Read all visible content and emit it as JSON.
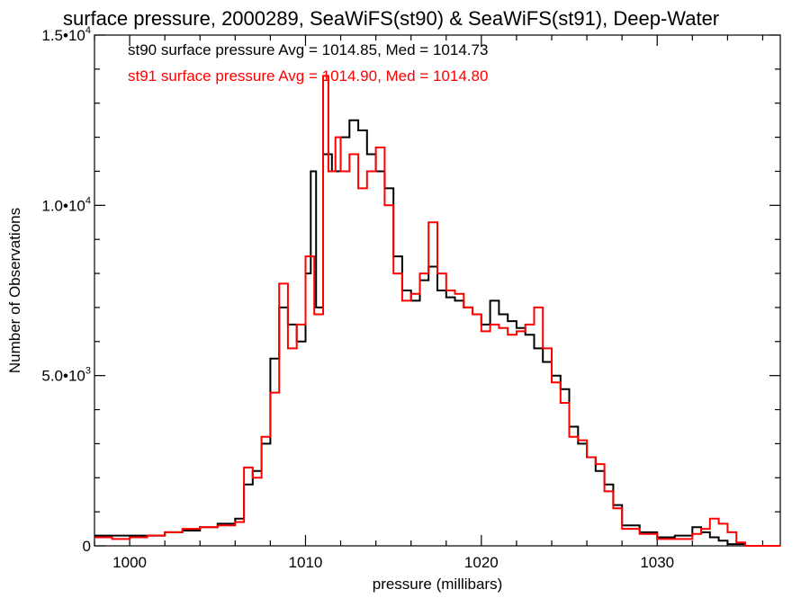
{
  "chart_data": {
    "type": "line",
    "title": "surface pressure, 2000289, SeaWiFS(st90) & SeaWiFS(st91), Deep-Water",
    "xlabel": "pressure (millibars)",
    "ylabel": "Number of Observations",
    "xlim": [
      998,
      1037
    ],
    "ylim": [
      0,
      15000
    ],
    "x_ticks": [
      1000,
      1010,
      1020,
      1030
    ],
    "y_ticks": [
      {
        "mantissa": "0",
        "exp": ""
      },
      {
        "mantissa": "5.0•10",
        "exp": "3"
      },
      {
        "mantissa": "1.0•10",
        "exp": "4"
      },
      {
        "mantissa": "1.5•10",
        "exp": "4"
      }
    ],
    "y_tick_values": [
      0,
      5000,
      10000,
      15000
    ],
    "legend": [
      {
        "text": "st90 surface pressure Avg = 1014.85, Med = 1014.73",
        "color": "#000000"
      },
      {
        "text": "st91 surface pressure Avg = 1014.90, Med = 1014.80",
        "color": "#ff0000"
      }
    ],
    "series": [
      {
        "color": "#000000",
        "x": [
          998,
          999,
          1000,
          1001,
          1002,
          1003,
          1004,
          1005,
          1006,
          1006.5,
          1007,
          1007.5,
          1008,
          1008.5,
          1009,
          1009.5,
          1010,
          1010.3,
          1010.6,
          1011,
          1011.5,
          1012,
          1012.5,
          1013,
          1013.5,
          1014,
          1014.5,
          1015,
          1015.5,
          1016,
          1016.5,
          1017,
          1017.5,
          1018,
          1018.5,
          1019,
          1019.5,
          1020,
          1020.5,
          1021,
          1021.5,
          1022,
          1022.5,
          1023,
          1023.5,
          1024,
          1024.5,
          1025,
          1025.5,
          1026,
          1026.5,
          1027,
          1027.5,
          1028,
          1029,
          1030,
          1031,
          1032,
          1032.5,
          1033,
          1033.5,
          1034,
          1035,
          1036,
          1037
        ],
        "y": [
          300,
          300,
          300,
          300,
          400,
          450,
          550,
          650,
          800,
          1800,
          2200,
          3000,
          5500,
          7000,
          6500,
          6000,
          8000,
          11000,
          7000,
          11500,
          11000,
          12000,
          12500,
          12200,
          11500,
          11000,
          10500,
          8500,
          7500,
          7200,
          7800,
          8200,
          7500,
          7300,
          7200,
          7000,
          6800,
          6500,
          7200,
          6800,
          6600,
          6400,
          6200,
          5800,
          5400,
          5000,
          4600,
          3500,
          3000,
          2600,
          2200,
          1800,
          1200,
          600,
          400,
          250,
          300,
          550,
          400,
          250,
          150,
          50,
          0,
          0,
          0
        ]
      },
      {
        "color": "#ff0000",
        "x": [
          998,
          999,
          1000,
          1001,
          1002,
          1003,
          1004,
          1005,
          1006,
          1006.5,
          1007,
          1007.5,
          1008,
          1008.5,
          1009,
          1009.5,
          1010,
          1010.5,
          1011,
          1011.3,
          1011.7,
          1012,
          1012.5,
          1013,
          1013.5,
          1014,
          1014.5,
          1015,
          1015.5,
          1016,
          1016.5,
          1017,
          1017.5,
          1018,
          1018.5,
          1019,
          1019.5,
          1020,
          1020.5,
          1021,
          1021.5,
          1022,
          1022.5,
          1023,
          1023.5,
          1024,
          1024.5,
          1025,
          1025.5,
          1026,
          1026.5,
          1027,
          1027.5,
          1028,
          1029,
          1030,
          1031,
          1032,
          1032.5,
          1033,
          1033.5,
          1034,
          1034.5,
          1035,
          1036,
          1037
        ],
        "y": [
          250,
          200,
          250,
          300,
          400,
          500,
          550,
          600,
          700,
          2300,
          2000,
          3200,
          4500,
          7700,
          5800,
          6500,
          8500,
          6800,
          13800,
          11000,
          12000,
          11000,
          11500,
          10500,
          11000,
          11700,
          10000,
          8000,
          7200,
          7400,
          8000,
          9500,
          8000,
          7500,
          7400,
          7000,
          6800,
          6300,
          6500,
          6400,
          6200,
          6300,
          6500,
          7000,
          5800,
          4800,
          4200,
          3200,
          3100,
          2600,
          2400,
          1600,
          1100,
          500,
          350,
          200,
          200,
          350,
          500,
          800,
          650,
          400,
          100,
          0,
          0,
          0
        ]
      }
    ]
  }
}
